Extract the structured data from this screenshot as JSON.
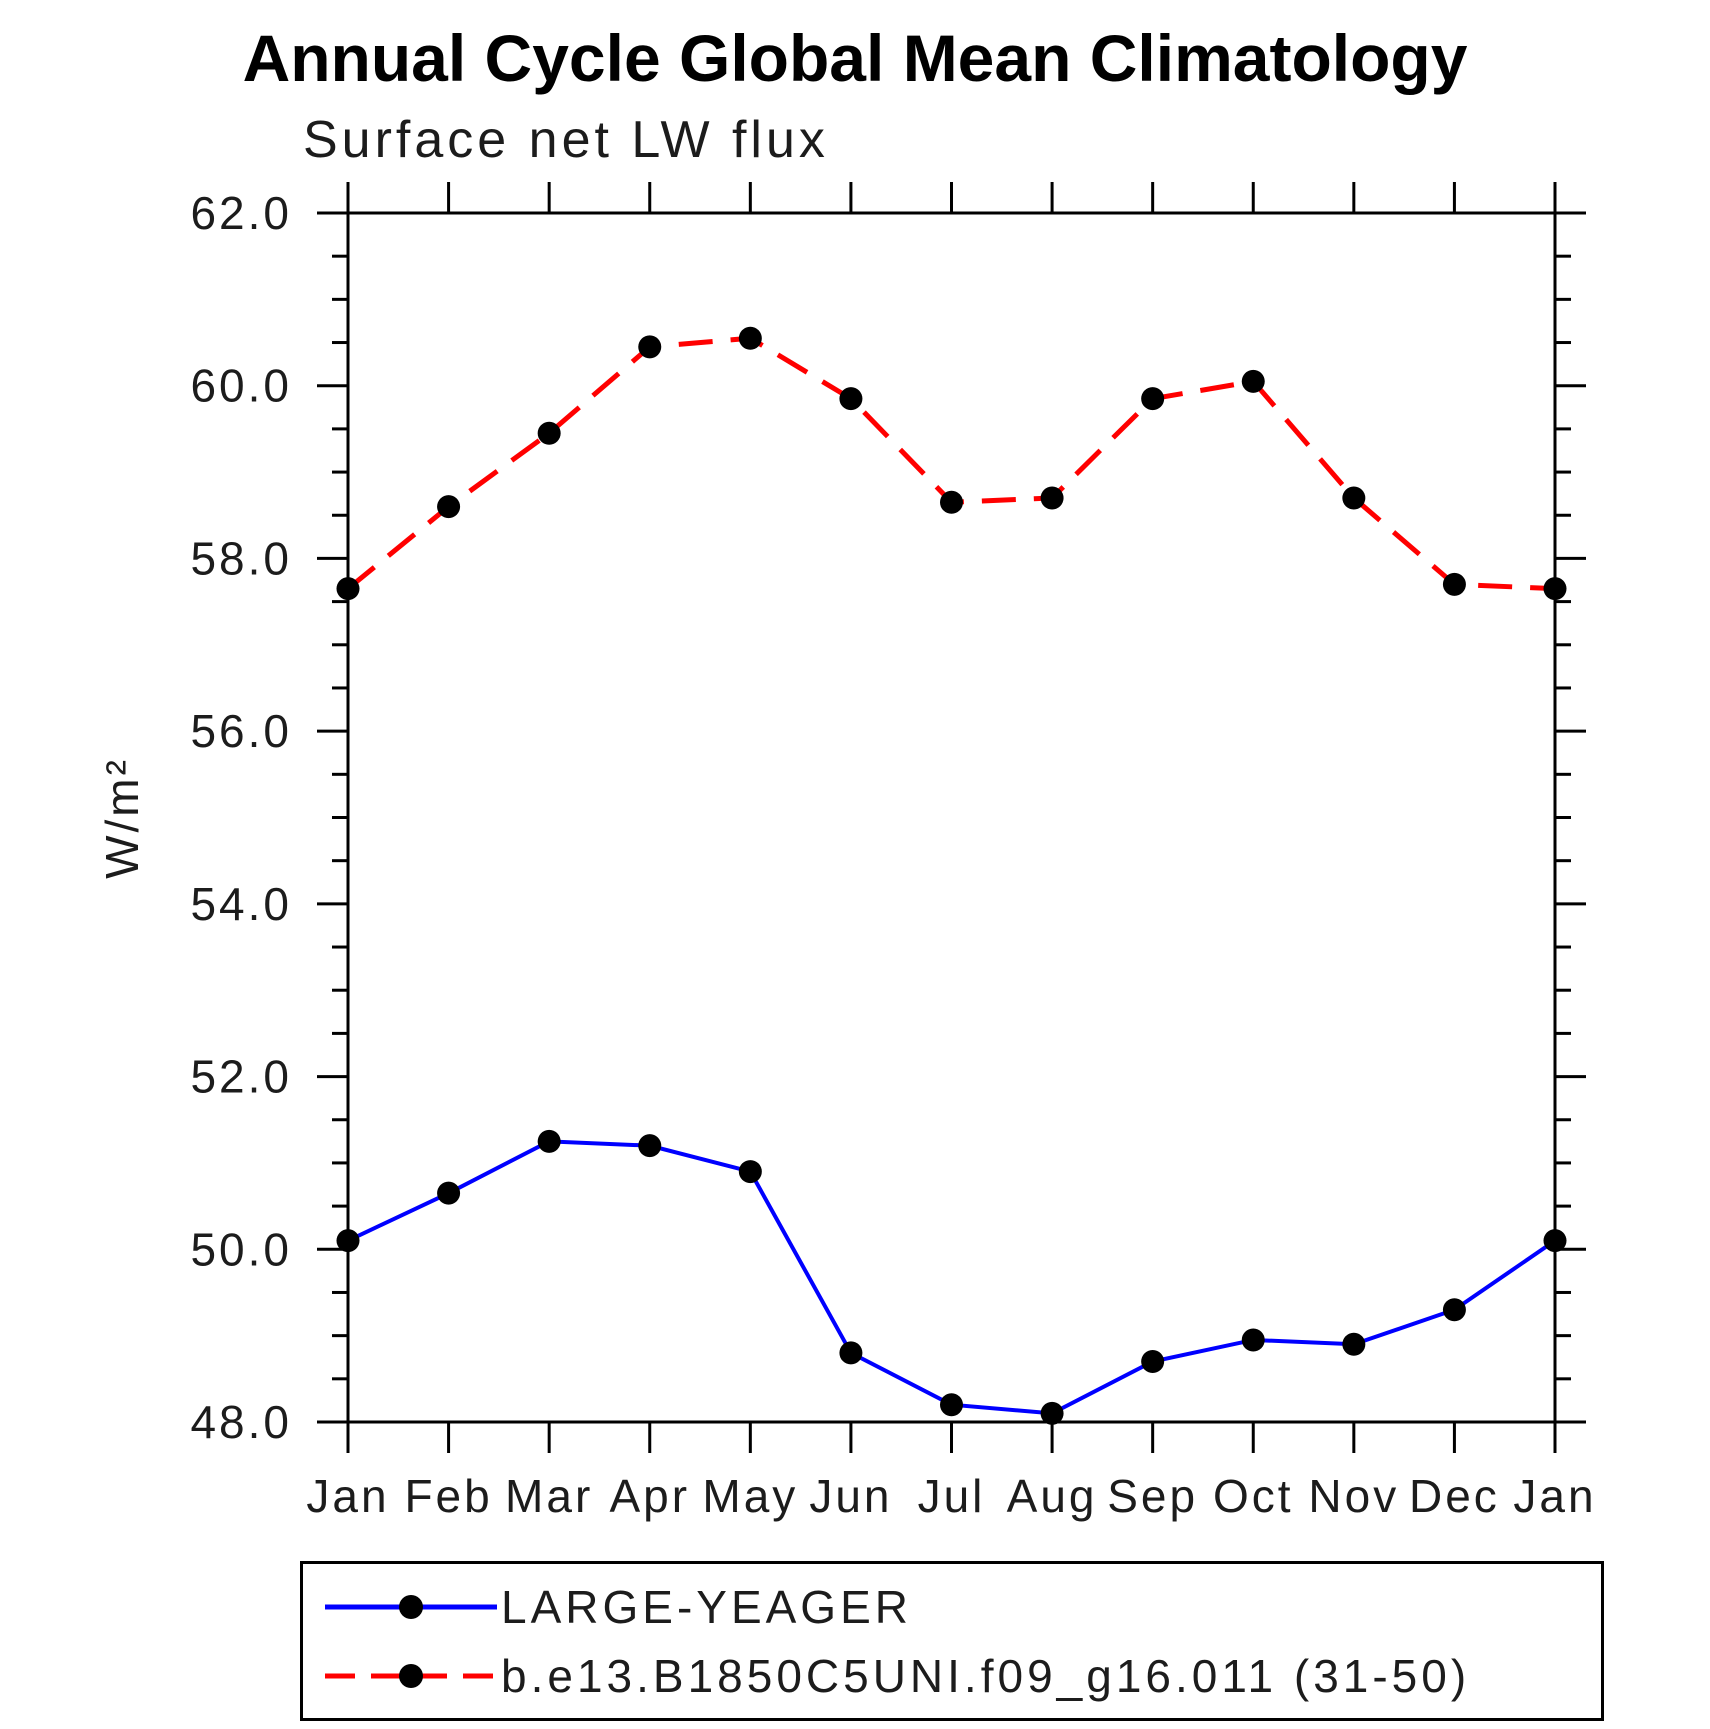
{
  "page": {
    "title": "Annual Cycle Global Mean Climatology",
    "subtitle": "Surface net LW flux"
  },
  "chart_data": {
    "type": "line",
    "title": "Annual Cycle Global Mean Climatology",
    "subtitle": "Surface net LW flux",
    "xlabel": "",
    "ylabel": "W/m²",
    "categories": [
      "Jan",
      "Feb",
      "Mar",
      "Apr",
      "May",
      "Jun",
      "Jul",
      "Aug",
      "Sep",
      "Oct",
      "Nov",
      "Dec",
      "Jan"
    ],
    "series": [
      {
        "name": "LARGE-YEAGER",
        "color": "#0000ff",
        "line_style": "solid",
        "marker": "circle",
        "marker_color": "#000000",
        "values": [
          50.1,
          50.65,
          51.25,
          51.2,
          50.9,
          48.8,
          48.2,
          48.1,
          48.7,
          48.95,
          48.9,
          49.3,
          50.1
        ]
      },
      {
        "name": "b.e13.B1850C5UNI.f09_g16.011 (31-50)",
        "color": "#ff0000",
        "line_style": "dashed",
        "marker": "circle",
        "marker_color": "#000000",
        "values": [
          57.65,
          58.6,
          59.45,
          60.45,
          60.55,
          59.85,
          58.65,
          58.7,
          59.85,
          60.05,
          58.7,
          57.7,
          57.65
        ]
      }
    ],
    "ylim": [
      48.0,
      62.0
    ],
    "y_major_step": 2.0,
    "y_minor_step": 0.5,
    "y_tick_labels": [
      "48.0",
      "50.0",
      "52.0",
      "54.0",
      "56.0",
      "58.0",
      "60.0",
      "62.0"
    ],
    "grid": false,
    "legend_position": "bottom",
    "axis_color": "#000000"
  }
}
